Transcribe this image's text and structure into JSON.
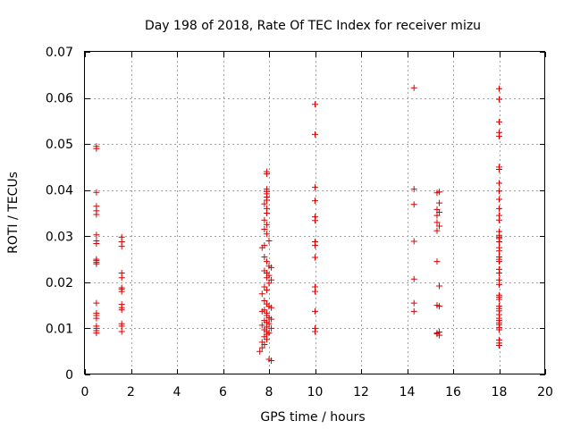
{
  "chart_data": {
    "type": "scatter",
    "title": "Day 198 of 2018, Rate Of TEC Index for receiver mizu",
    "xlabel": "GPS time / hours",
    "ylabel": "ROTI / TECUs",
    "xlim": [
      0,
      20
    ],
    "ylim": [
      0,
      0.07
    ],
    "xticks": [
      0,
      2,
      4,
      6,
      8,
      10,
      12,
      14,
      16,
      18,
      20
    ],
    "xtick_labels": [
      "0",
      "2",
      "4",
      "6",
      "8",
      "10",
      "12",
      "14",
      "16",
      "18",
      "20"
    ],
    "yticks": [
      0,
      0.01,
      0.02,
      0.03,
      0.04,
      0.05,
      0.06,
      0.07
    ],
    "ytick_labels": [
      "0",
      "0.01",
      "0.02",
      "0.03",
      "0.04",
      "0.05",
      "0.06",
      "0.07"
    ],
    "grid": true,
    "marker": "+",
    "color": "#dd0000",
    "series": [
      {
        "name": "ROTI",
        "points": [
          [
            0.5,
            0.0495
          ],
          [
            0.5,
            0.049
          ],
          [
            0.5,
            0.0395
          ],
          [
            0.5,
            0.0365
          ],
          [
            0.5,
            0.0355
          ],
          [
            0.5,
            0.0347
          ],
          [
            0.5,
            0.0303
          ],
          [
            0.5,
            0.029
          ],
          [
            0.5,
            0.0284
          ],
          [
            0.5,
            0.025
          ],
          [
            0.5,
            0.0247
          ],
          [
            0.5,
            0.0243
          ],
          [
            0.5,
            0.024
          ],
          [
            0.5,
            0.0155
          ],
          [
            0.5,
            0.0133
          ],
          [
            0.5,
            0.0128
          ],
          [
            0.5,
            0.0122
          ],
          [
            0.5,
            0.0105
          ],
          [
            0.5,
            0.01
          ],
          [
            0.5,
            0.0095
          ],
          [
            0.5,
            0.009
          ],
          [
            1.6,
            0.0298
          ],
          [
            1.6,
            0.0288
          ],
          [
            1.6,
            0.0278
          ],
          [
            1.6,
            0.022
          ],
          [
            1.6,
            0.021
          ],
          [
            1.6,
            0.0188
          ],
          [
            1.6,
            0.0185
          ],
          [
            1.6,
            0.018
          ],
          [
            1.6,
            0.0152
          ],
          [
            1.6,
            0.0145
          ],
          [
            1.6,
            0.014
          ],
          [
            1.6,
            0.011
          ],
          [
            1.6,
            0.0105
          ],
          [
            1.6,
            0.0093
          ],
          [
            7.9,
            0.044
          ],
          [
            7.9,
            0.0435
          ],
          [
            7.9,
            0.0402
          ],
          [
            7.9,
            0.0397
          ],
          [
            7.9,
            0.0392
          ],
          [
            7.9,
            0.0385
          ],
          [
            7.9,
            0.0378
          ],
          [
            7.8,
            0.037
          ],
          [
            7.9,
            0.036
          ],
          [
            7.9,
            0.035
          ],
          [
            7.8,
            0.0335
          ],
          [
            7.9,
            0.0325
          ],
          [
            7.8,
            0.0315
          ],
          [
            7.9,
            0.0305
          ],
          [
            8.0,
            0.029
          ],
          [
            7.8,
            0.028
          ],
          [
            7.7,
            0.0275
          ],
          [
            7.8,
            0.0255
          ],
          [
            7.9,
            0.0245
          ],
          [
            8.0,
            0.0235
          ],
          [
            8.1,
            0.0232
          ],
          [
            7.8,
            0.0225
          ],
          [
            7.9,
            0.022
          ],
          [
            8.0,
            0.0215
          ],
          [
            7.9,
            0.021
          ],
          [
            8.1,
            0.0205
          ],
          [
            8.0,
            0.0198
          ],
          [
            7.8,
            0.019
          ],
          [
            7.9,
            0.0183
          ],
          [
            7.7,
            0.0175
          ],
          [
            7.8,
            0.016
          ],
          [
            7.9,
            0.0153
          ],
          [
            8.0,
            0.0148
          ],
          [
            8.1,
            0.0145
          ],
          [
            7.8,
            0.014
          ],
          [
            7.7,
            0.0137
          ],
          [
            7.9,
            0.0133
          ],
          [
            7.9,
            0.0128
          ],
          [
            8.0,
            0.0123
          ],
          [
            8.1,
            0.012
          ],
          [
            7.8,
            0.0117
          ],
          [
            7.9,
            0.0113
          ],
          [
            8.0,
            0.011
          ],
          [
            7.7,
            0.0107
          ],
          [
            7.9,
            0.0103
          ],
          [
            8.1,
            0.01
          ],
          [
            7.8,
            0.0097
          ],
          [
            7.9,
            0.0093
          ],
          [
            8.0,
            0.009
          ],
          [
            7.9,
            0.0087
          ],
          [
            7.8,
            0.0082
          ],
          [
            7.9,
            0.0076
          ],
          [
            7.7,
            0.007
          ],
          [
            7.8,
            0.0065
          ],
          [
            7.7,
            0.0058
          ],
          [
            7.6,
            0.005
          ],
          [
            8.0,
            0.0033
          ],
          [
            8.1,
            0.003
          ],
          [
            10.0,
            0.0586
          ],
          [
            10.0,
            0.0521
          ],
          [
            10.0,
            0.0406
          ],
          [
            10.0,
            0.0377
          ],
          [
            10.0,
            0.0342
          ],
          [
            10.0,
            0.0334
          ],
          [
            10.0,
            0.0288
          ],
          [
            10.0,
            0.028
          ],
          [
            10.0,
            0.0254
          ],
          [
            10.0,
            0.019
          ],
          [
            10.0,
            0.018
          ],
          [
            10.0,
            0.0137
          ],
          [
            10.0,
            0.01
          ],
          [
            10.0,
            0.0093
          ],
          [
            14.3,
            0.0622
          ],
          [
            14.3,
            0.0402
          ],
          [
            14.3,
            0.0369
          ],
          [
            14.3,
            0.0289
          ],
          [
            14.3,
            0.0207
          ],
          [
            14.3,
            0.0155
          ],
          [
            14.3,
            0.0137
          ],
          [
            15.4,
            0.0396
          ],
          [
            15.3,
            0.0394
          ],
          [
            15.4,
            0.0372
          ],
          [
            15.3,
            0.0358
          ],
          [
            15.4,
            0.0352
          ],
          [
            15.3,
            0.0345
          ],
          [
            15.3,
            0.033
          ],
          [
            15.4,
            0.0322
          ],
          [
            15.3,
            0.0312
          ],
          [
            15.3,
            0.0245
          ],
          [
            15.4,
            0.0192
          ],
          [
            15.3,
            0.015
          ],
          [
            15.4,
            0.0148
          ],
          [
            15.4,
            0.0092
          ],
          [
            15.3,
            0.009
          ],
          [
            15.3,
            0.0088
          ],
          [
            15.4,
            0.0085
          ],
          [
            18.0,
            0.062
          ],
          [
            18.0,
            0.0597
          ],
          [
            18.0,
            0.0548
          ],
          [
            18.0,
            0.0525
          ],
          [
            18.0,
            0.0517
          ],
          [
            18.0,
            0.045
          ],
          [
            18.0,
            0.0445
          ],
          [
            18.0,
            0.0415
          ],
          [
            18.0,
            0.0398
          ],
          [
            18.0,
            0.038
          ],
          [
            18.0,
            0.036
          ],
          [
            18.0,
            0.0345
          ],
          [
            18.0,
            0.0335
          ],
          [
            18.0,
            0.031
          ],
          [
            18.0,
            0.0302
          ],
          [
            18.0,
            0.0298
          ],
          [
            18.0,
            0.0295
          ],
          [
            18.0,
            0.0288
          ],
          [
            18.0,
            0.0275
          ],
          [
            18.0,
            0.0268
          ],
          [
            18.0,
            0.0255
          ],
          [
            18.0,
            0.025
          ],
          [
            18.0,
            0.0245
          ],
          [
            18.0,
            0.0228
          ],
          [
            18.0,
            0.022
          ],
          [
            18.0,
            0.0205
          ],
          [
            18.0,
            0.0195
          ],
          [
            18.0,
            0.0172
          ],
          [
            18.0,
            0.0168
          ],
          [
            18.0,
            0.0163
          ],
          [
            18.0,
            0.0148
          ],
          [
            18.0,
            0.0143
          ],
          [
            18.0,
            0.0138
          ],
          [
            18.0,
            0.013
          ],
          [
            18.0,
            0.0122
          ],
          [
            18.0,
            0.0117
          ],
          [
            18.0,
            0.0112
          ],
          [
            18.0,
            0.0108
          ],
          [
            18.0,
            0.0102
          ],
          [
            18.0,
            0.0097
          ],
          [
            18.0,
            0.0075
          ],
          [
            18.0,
            0.0068
          ],
          [
            18.0,
            0.0063
          ]
        ]
      }
    ]
  }
}
